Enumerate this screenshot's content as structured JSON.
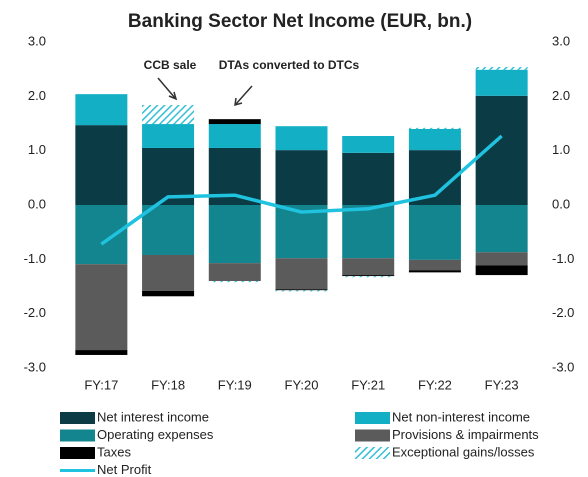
{
  "chart_data": {
    "type": "bar",
    "title": "Banking Sector Net Income (EUR, bn.)",
    "categories": [
      "FY:17",
      "FY:18",
      "FY:19",
      "FY:20",
      "FY:21",
      "FY:22",
      "FY:23"
    ],
    "series": [
      {
        "name": "Net interest income",
        "color": "#0b3b45",
        "values": [
          1.47,
          1.05,
          1.05,
          1.01,
          0.96,
          1.01,
          2.01
        ]
      },
      {
        "name": "Net non-interest income",
        "color": "#12afc5",
        "values": [
          0.57,
          0.44,
          0.44,
          0.44,
          0.31,
          0.39,
          0.48
        ]
      },
      {
        "name": "Operating expenses",
        "color": "#13858f",
        "values": [
          -1.09,
          -0.92,
          -1.07,
          -0.98,
          -0.98,
          -1.01,
          -0.87
        ]
      },
      {
        "name": "Provisions & impairments",
        "color": "#5b5b5b",
        "values": [
          -1.58,
          -0.66,
          -0.33,
          -0.57,
          -0.31,
          -0.19,
          -0.24
        ]
      },
      {
        "name": "Taxes",
        "color": "#000000",
        "values": [
          -0.09,
          -0.1,
          0.09,
          -0.02,
          -0.02,
          -0.04,
          -0.18
        ]
      },
      {
        "name": "Exceptional gains/losses",
        "color": "#33bfd6",
        "hatched": true,
        "values": [
          0,
          0.35,
          -0.02,
          -0.02,
          -0.02,
          0.02,
          0.05
        ]
      },
      {
        "name": "Net Profit",
        "color": "#1fc3e0",
        "type": "line",
        "values": [
          -0.72,
          0.15,
          0.18,
          -0.13,
          -0.07,
          0.18,
          1.27
        ]
      }
    ],
    "annotations": [
      {
        "text": "CCB sale"
      },
      {
        "text": "DTAs converted to DTCs"
      }
    ],
    "ylim": [
      -3,
      3
    ],
    "yticks": [
      {
        "value": -3,
        "label": "-3.0"
      },
      {
        "value": -2,
        "label": "-2.0"
      },
      {
        "value": -1,
        "label": "-1.0"
      },
      {
        "value": 0,
        "label": "0.0"
      },
      {
        "value": 1,
        "label": "1.0"
      },
      {
        "value": 2,
        "label": "2.0"
      },
      {
        "value": 3,
        "label": "3.0"
      }
    ],
    "y2lim": [
      -3,
      3
    ],
    "y2ticks": [
      {
        "value": -3,
        "label": "-3.0"
      },
      {
        "value": -2,
        "label": "-2.0"
      },
      {
        "value": -1,
        "label": "-1.0"
      },
      {
        "value": 0,
        "label": "0.0"
      },
      {
        "value": 1,
        "label": "1.0"
      },
      {
        "value": 2,
        "label": "2.0"
      },
      {
        "value": 3,
        "label": "3.0"
      }
    ],
    "grid": false
  }
}
